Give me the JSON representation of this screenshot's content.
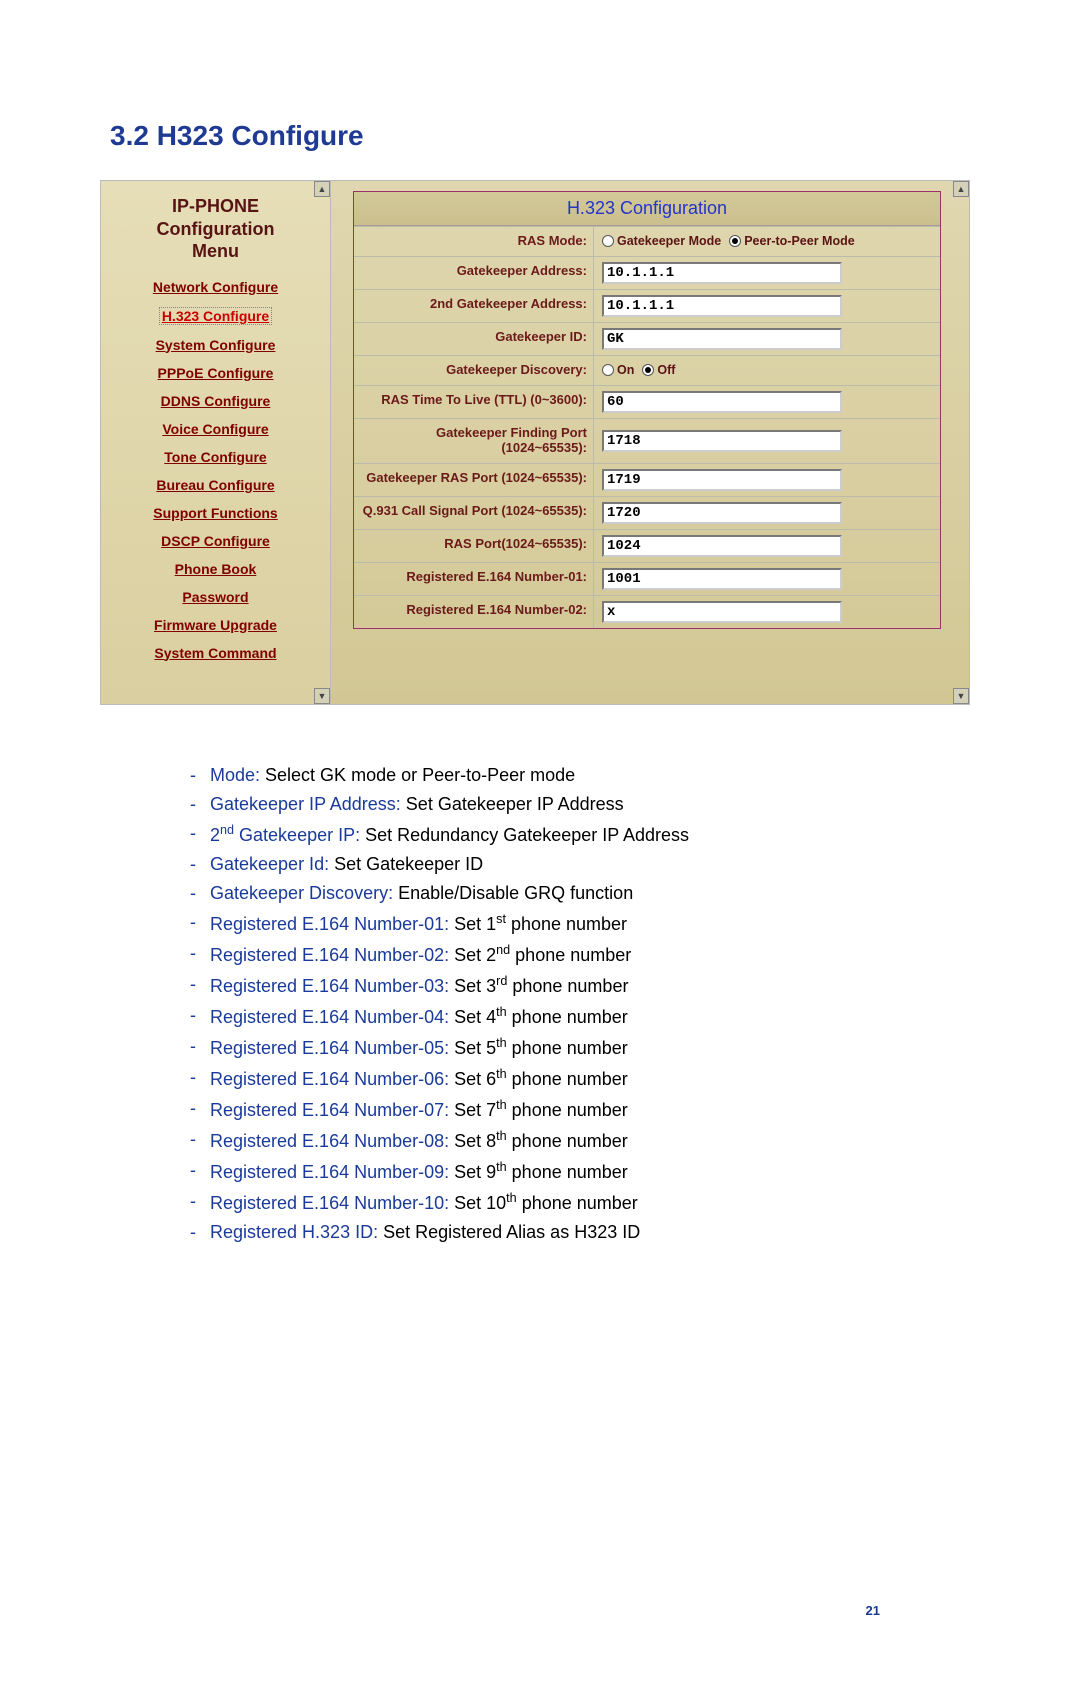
{
  "section_title": "3.2  H323 Configure",
  "page_number": "21",
  "sidebar": {
    "heading_line1": "IP-PHONE",
    "heading_line2": "Configuration",
    "heading_line3": "Menu",
    "items": [
      {
        "label": "Network Configure",
        "active": false
      },
      {
        "label": "H.323 Configure",
        "active": true
      },
      {
        "label": "System Configure",
        "active": false
      },
      {
        "label": "PPPoE Configure",
        "active": false
      },
      {
        "label": "DDNS Configure",
        "active": false
      },
      {
        "label": "Voice Configure",
        "active": false
      },
      {
        "label": "Tone Configure",
        "active": false
      },
      {
        "label": "Bureau Configure",
        "active": false
      },
      {
        "label": "Support Functions",
        "active": false
      },
      {
        "label": "DSCP Configure",
        "active": false
      },
      {
        "label": "Phone Book",
        "active": false
      },
      {
        "label": "Password",
        "active": false
      },
      {
        "label": "Firmware Upgrade",
        "active": false
      },
      {
        "label": "System Command",
        "active": false
      }
    ]
  },
  "form": {
    "title": "H.323 Configuration",
    "ras_mode": {
      "label": "RAS Mode:",
      "opt1": "Gatekeeper Mode",
      "opt2": "Peer-to-Peer Mode",
      "selected": "opt2"
    },
    "gk_addr": {
      "label": "Gatekeeper Address:",
      "value": "10.1.1.1"
    },
    "gk_addr2": {
      "label": "2nd Gatekeeper Address:",
      "value": "10.1.1.1"
    },
    "gk_id": {
      "label": "Gatekeeper ID:",
      "value": "GK"
    },
    "gk_disc": {
      "label": "Gatekeeper Discovery:",
      "on": "On",
      "off": "Off",
      "selected": "off"
    },
    "ras_ttl": {
      "label": "RAS Time To Live (TTL) (0~3600):",
      "value": "60"
    },
    "gk_find_port": {
      "label": "Gatekeeper Finding Port (1024~65535):",
      "value": "1718"
    },
    "gk_ras_port": {
      "label": "Gatekeeper RAS Port (1024~65535):",
      "value": "1719"
    },
    "q931_port": {
      "label": "Q.931 Call Signal Port (1024~65535):",
      "value": "1720"
    },
    "ras_port": {
      "label": "RAS Port(1024~65535):",
      "value": "1024"
    },
    "e164_01": {
      "label": "Registered E.164 Number-01:",
      "value": "1001"
    },
    "e164_02": {
      "label": "Registered E.164 Number-02:",
      "value": "x"
    }
  },
  "desc": [
    {
      "term": "Mode:",
      "text": " Select GK mode or Peer-to-Peer mode"
    },
    {
      "term": "Gatekeeper IP Address:",
      "text": " Set Gatekeeper IP Address"
    },
    {
      "term": "2<sup>nd</sup> Gatekeeper IP:",
      "text": " Set Redundancy Gatekeeper IP Address"
    },
    {
      "term": "Gatekeeper Id:",
      "text": " Set Gatekeeper ID"
    },
    {
      "term": "Gatekeeper Discovery:",
      "text": " Enable/Disable GRQ function"
    },
    {
      "term": "Registered E.164 Number-01:",
      "text": " Set 1<sup>st</sup> phone number"
    },
    {
      "term": "Registered E.164 Number-02:",
      "text": " Set 2<sup>nd</sup> phone number"
    },
    {
      "term": "Registered E.164 Number-03:",
      "text": " Set 3<sup>rd</sup> phone number"
    },
    {
      "term": "Registered E.164 Number-04:",
      "text": " Set 4<sup>th</sup> phone number"
    },
    {
      "term": "Registered E.164 Number-05:",
      "text": " Set 5<sup>th</sup> phone number"
    },
    {
      "term": "Registered E.164 Number-06:",
      "text": " Set 6<sup>th</sup> phone number"
    },
    {
      "term": "Registered E.164 Number-07:",
      "text": " Set 7<sup>th</sup> phone number"
    },
    {
      "term": "Registered E.164 Number-08:",
      "text": " Set 8<sup>th</sup> phone number"
    },
    {
      "term": "Registered E.164 Number-09:",
      "text": " Set 9<sup>th</sup> phone number"
    },
    {
      "term": "Registered E.164 Number-10:",
      "text": " Set 10<sup>th</sup> phone number"
    },
    {
      "term": "Registered H.323 ID:",
      "text": " Set Registered Alias as H323 ID"
    }
  ]
}
